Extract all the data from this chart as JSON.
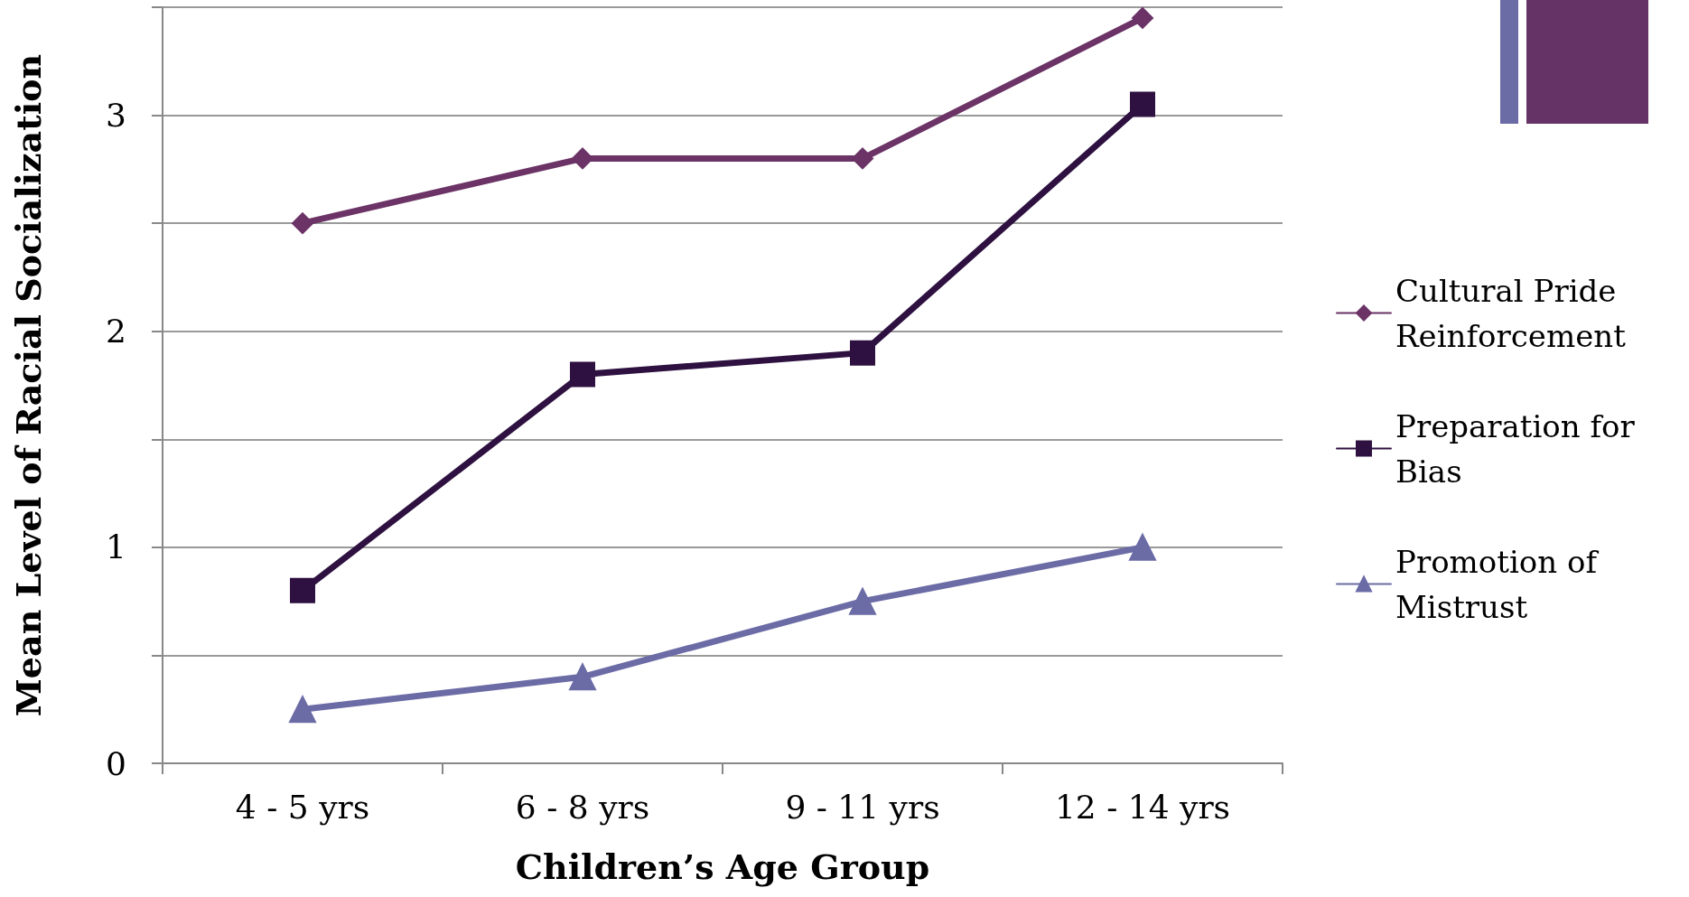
{
  "chart_data": {
    "type": "line",
    "xlabel": "Children’s Age Group",
    "ylabel": "Mean Level of Racial Socialization",
    "categories": [
      "4 - 5 yrs",
      "6 - 8 yrs",
      "9 - 11 yrs",
      "12 - 14 yrs"
    ],
    "series": [
      {
        "name": "Cultural Pride Reinforcement",
        "color": "#6b3366",
        "marker": "diamond",
        "values": [
          2.5,
          2.8,
          2.8,
          3.45
        ]
      },
      {
        "name": "Preparation for Bias",
        "color": "#2e1140",
        "marker": "square",
        "values": [
          0.8,
          1.8,
          1.9,
          3.05
        ]
      },
      {
        "name": "Promotion of Mistrust",
        "color": "#6b6ba6",
        "marker": "triangle",
        "values": [
          0.25,
          0.4,
          0.75,
          1.0
        ]
      }
    ],
    "ylim": [
      0,
      3.5
    ],
    "yticks": [
      0,
      {
        "value": 0.5,
        "label": null
      },
      1,
      {
        "value": 1.5,
        "label": null
      },
      2,
      {
        "value": 2.5,
        "label": null
      },
      3,
      {
        "value": 3.5,
        "label": null
      }
    ],
    "grid": "y",
    "legend": "right",
    "line_style": "solid"
  }
}
